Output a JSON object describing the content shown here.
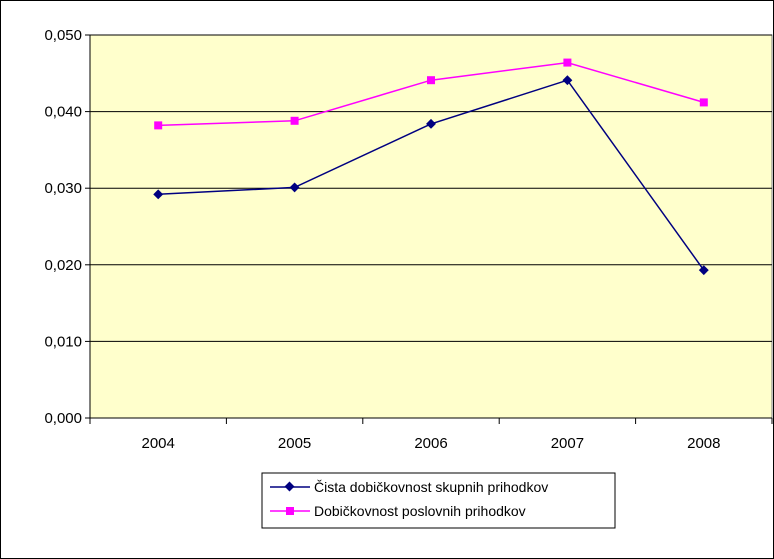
{
  "chart_data": {
    "type": "line",
    "categories": [
      "2004",
      "2005",
      "2006",
      "2007",
      "2008"
    ],
    "series": [
      {
        "name": "Čista dobičkovnost skupnih prihodkov",
        "values": [
          0.0292,
          0.0301,
          0.0384,
          0.0441,
          0.0193
        ],
        "color": "#000080",
        "marker": "diamond"
      },
      {
        "name": "Dobičkovnost poslovnih prihodkov",
        "values": [
          0.0382,
          0.0388,
          0.0441,
          0.0464,
          0.0412
        ],
        "color": "#ff00ff",
        "marker": "square"
      }
    ],
    "ylim": [
      0,
      0.05
    ],
    "yticks": [
      "0,000",
      "0,010",
      "0,020",
      "0,030",
      "0,040",
      "0,050"
    ],
    "grid": true,
    "plot_background": "#ffffcc",
    "legend_position": "bottom"
  }
}
